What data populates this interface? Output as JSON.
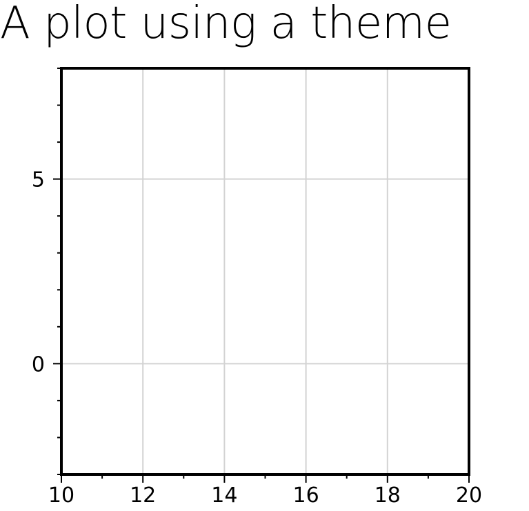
{
  "chart_data": {
    "type": "scatter",
    "title": "A plot using a theme",
    "xlim": [
      10,
      20
    ],
    "ylim": [
      -3,
      8
    ],
    "x_ticks": [
      10,
      12,
      14,
      16,
      18,
      20
    ],
    "x_tick_labels": [
      "10",
      "12",
      "14",
      "16",
      "18",
      "20"
    ],
    "x_minor_ticks": [
      11,
      13,
      15,
      17,
      19
    ],
    "y_ticks": [
      0,
      5
    ],
    "y_tick_labels": [
      "0",
      "5"
    ],
    "y_minor_ticks": [
      -3,
      -2,
      -1,
      1,
      2,
      3,
      4,
      6,
      7,
      8
    ],
    "grid": true,
    "series": [],
    "colors": {
      "frame": "#000000",
      "grid": "#d3d3d3",
      "background": "#ffffff"
    }
  }
}
